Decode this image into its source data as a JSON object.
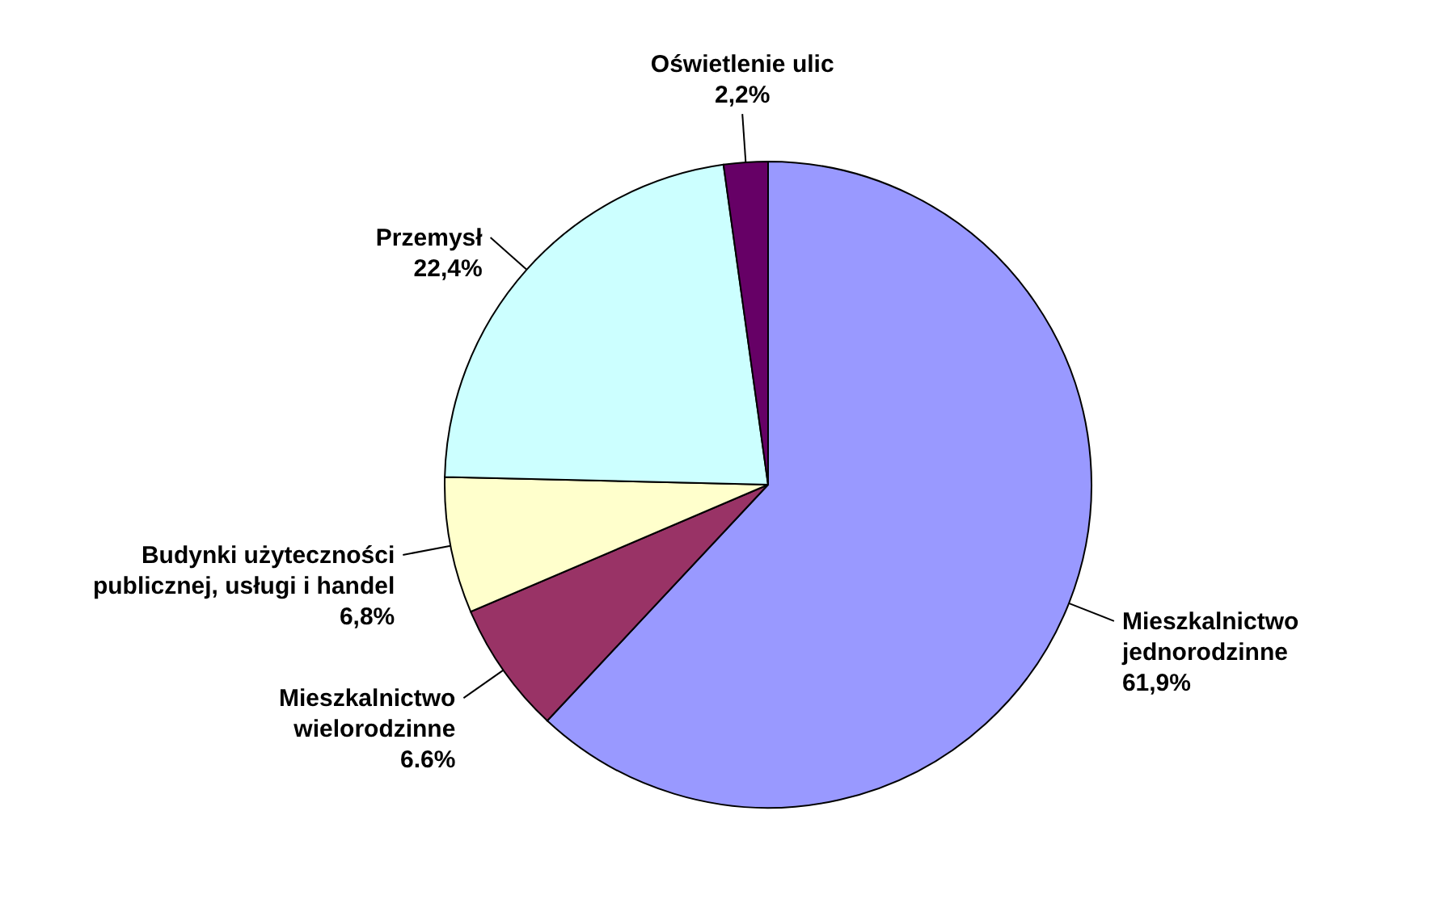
{
  "chart_data": {
    "type": "pie",
    "categories": [
      "Mieszkalnictwo\njednorodzinne",
      "Mieszkalnictwo\nwielorodzinne",
      "Budynki użyteczności\npublicznej, usługi i handel",
      "Przemysł",
      "Oświetlenie ulic"
    ],
    "values": [
      61.9,
      6.6,
      6.8,
      22.4,
      2.2
    ],
    "colors": [
      "#9999ff",
      "#993366",
      "#ffffcc",
      "#ccffff",
      "#660066"
    ],
    "value_labels": [
      "61,9%",
      "6.6%",
      "6,8%",
      "22,4%",
      "2,2%"
    ]
  }
}
